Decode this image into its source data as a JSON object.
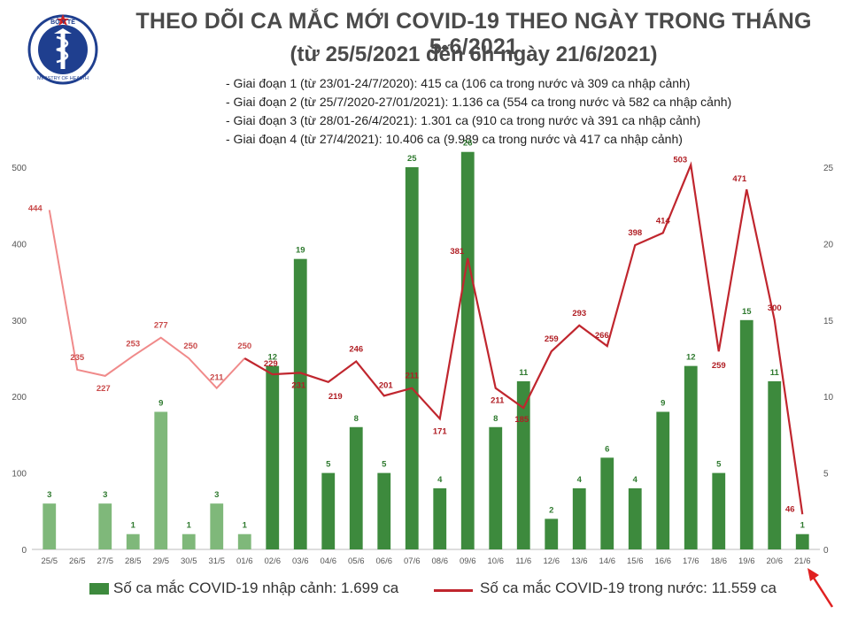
{
  "logo": {
    "icon": "ministry-of-health-emblem-icon",
    "text_top": "BỘ Y TẾ",
    "text_bottom": "MINISTRY OF HEALTH"
  },
  "header": {
    "title": "THEO DÕI CA MẮC MỚI COVID-19 THEO NGÀY TRONG THÁNG 5-6/2021",
    "subtitle": "(từ 25/5/2021 đến 6h ngày 21/6/2021)"
  },
  "notes": [
    "- Giai đoạn 1 (từ 23/01-24/7/2020): 415 ca (106 ca trong nước và 309 ca nhập cảnh)",
    "- Giai đoạn 2 (từ 25/7/2020-27/01/2021): 1.136 ca (554 ca trong nước và 582 ca nhập cảnh)",
    "- Giai đoạn 3 (từ 28/01-26/4/2021): 1.301 ca (910 ca trong nước và 391 ca nhập cảnh)",
    "- Giai đoạn 4 (từ 27/4/2021): 10.406 ca (9.989 ca trong nước và 417 ca nhập cảnh)"
  ],
  "chart_data": {
    "type": "bar+line",
    "categories": [
      "25/5",
      "26/5",
      "27/5",
      "28/5",
      "29/5",
      "30/5",
      "31/5",
      "01/6",
      "02/6",
      "03/6",
      "04/6",
      "05/6",
      "06/6",
      "07/6",
      "08/6",
      "09/6",
      "10/6",
      "11/6",
      "12/6",
      "13/6",
      "14/6",
      "15/6",
      "16/6",
      "17/6",
      "18/6",
      "19/6",
      "20/6",
      "21/6"
    ],
    "series": [
      {
        "name": "Số ca mắc COVID-19 nhập cảnh: 1.699 ca",
        "type": "bar",
        "axis": "right",
        "values": [
          3,
          0,
          3,
          1,
          9,
          1,
          3,
          1,
          12,
          19,
          5,
          8,
          5,
          25,
          4,
          26,
          8,
          11,
          2,
          4,
          6,
          4,
          9,
          12,
          5,
          15,
          11,
          1
        ],
        "labels": [
          "3",
          "",
          "3",
          "1",
          "9",
          "1",
          "3",
          "1",
          "12",
          "19",
          "5",
          "8",
          "5",
          "25",
          "4",
          "26",
          "8",
          "11",
          "2",
          "4",
          "6",
          "4",
          "9",
          "12",
          "5",
          "15",
          "11",
          "1"
        ]
      },
      {
        "name": "Số ca mắc COVID-19 trong nước: 11.559 ca",
        "type": "line",
        "axis": "left",
        "values": [
          444,
          235,
          227,
          253,
          277,
          250,
          211,
          250,
          229,
          231,
          219,
          246,
          201,
          211,
          171,
          381,
          211,
          185,
          259,
          293,
          266,
          398,
          414,
          503,
          259,
          471,
          300,
          46
        ]
      }
    ],
    "left_axis": {
      "min": 0,
      "max": 500,
      "ticks": [
        "0",
        "100",
        "200",
        "300",
        "400",
        "500"
      ]
    },
    "right_axis": {
      "min": 0,
      "max": 25,
      "ticks": [
        "0",
        "5",
        "10",
        "15",
        "20",
        "25"
      ]
    },
    "colors": {
      "bar_early": "#7fb87a",
      "bar_late": "#3d8a3d",
      "bar_label": "#2f7a2f",
      "line_early": "#f08a8a",
      "line_late": "#c0262e",
      "line_label": "#b01e24",
      "axis_text": "#555555",
      "arrow": "#e02020"
    },
    "light_count": 8,
    "grid": false,
    "legend_position": "bottom",
    "annotation": {
      "type": "arrow",
      "points_to": "21/6",
      "icon": "arrow-icon"
    }
  }
}
